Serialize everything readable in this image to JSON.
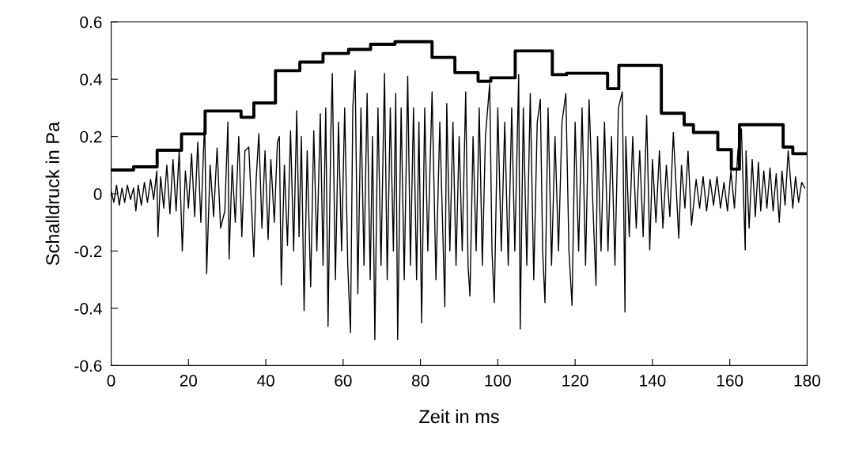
{
  "chart_data": {
    "type": "line",
    "xlabel": "Zeit in ms",
    "ylabel": "Schalldruck in Pa",
    "xlim": [
      0,
      180
    ],
    "ylim": [
      -0.6,
      0.6
    ],
    "xticks": [
      0,
      20,
      40,
      60,
      80,
      100,
      120,
      140,
      160,
      180
    ],
    "yticks": [
      -0.6,
      -0.4,
      -0.2,
      0,
      0.2,
      0.4,
      0.6
    ],
    "grid": false,
    "series": [
      {
        "color": "#000000",
        "x": [
          0,
          0.7,
          1.4,
          2.1,
          2.8,
          3.5,
          4.2,
          5,
          5.8,
          6.4,
          7,
          7.8,
          8.6,
          9.4,
          10.2,
          11,
          11.8,
          12.1,
          12.8,
          13.6,
          14.4,
          15.2,
          16,
          16.8,
          17.6,
          18.4,
          19.2,
          20,
          20.8,
          21.6,
          22.4,
          23.2,
          24.2,
          24.7,
          25.6,
          26.5,
          27.4,
          28.3,
          29.4,
          30.2,
          30.5,
          31.3,
          32.1,
          33,
          33.8,
          34.6,
          35.6,
          36.9,
          37.5,
          38.2,
          39,
          39.8,
          40.6,
          41.3,
          42.2,
          43,
          43.5,
          44,
          44.8,
          45.6,
          46.4,
          47.2,
          48,
          48.6,
          49.2,
          49.9,
          50.7,
          51.6,
          52.4,
          53.2,
          54.1,
          54.8,
          55.5,
          56.1,
          56.8,
          57.2,
          58,
          58.8,
          59.6,
          60.4,
          61.2,
          61.9,
          62.5,
          63.1,
          63.8,
          64.6,
          65.4,
          66.2,
          67,
          67.6,
          68.2,
          69,
          69.8,
          70.7,
          71.4,
          72.2,
          73,
          73.6,
          74.1,
          75,
          75.8,
          76.7,
          77.4,
          78.2,
          79,
          79.6,
          80.3,
          81.1,
          81.9,
          83,
          84,
          85,
          86.3,
          86.8,
          87.6,
          88.4,
          89.2,
          90,
          90.8,
          91.7,
          92.3,
          92.8,
          93.6,
          94.4,
          95.2,
          96,
          96.8,
          97.9,
          98.5,
          99.1,
          100,
          100.9,
          101.8,
          102.7,
          103.6,
          104.4,
          105.4,
          105.8,
          106.6,
          107.5,
          108.4,
          109.3,
          110.2,
          111,
          111.6,
          112.2,
          113,
          113.9,
          114.8,
          115.7,
          116.6,
          117.6,
          118.4,
          119.2,
          120,
          120.9,
          121.8,
          122.7,
          123.6,
          124.9,
          125.4,
          125.8,
          126.7,
          127.6,
          128.5,
          129.4,
          130.3,
          131.2,
          132.2,
          132.9,
          133.1,
          134,
          134.9,
          135.8,
          136.7,
          137.6,
          138.5,
          139.3,
          140,
          140.9,
          141.8,
          142.7,
          143.6,
          144.5,
          145.4,
          146.8,
          147.5,
          148.4,
          149.2,
          150.1,
          151.3,
          152.2,
          153.1,
          154,
          154.9,
          155.8,
          156.7,
          157.6,
          158.5,
          159.4,
          160.3,
          161.2,
          162.1,
          163,
          164,
          164.2,
          165,
          165.8,
          166.6,
          167.4,
          168,
          168.8,
          169.6,
          170.4,
          171.2,
          172,
          172.8,
          173.5,
          174.3,
          175.1,
          176.3,
          177,
          177.8,
          178.6,
          179.4
        ],
        "values": [
          0.01,
          -0.03,
          0.03,
          -0.04,
          0.02,
          -0.03,
          0.03,
          -0.02,
          0.02,
          -0.06,
          0.03,
          -0.04,
          0.04,
          -0.03,
          0.05,
          -0.02,
          0.08,
          -0.15,
          0.06,
          -0.05,
          0.1,
          -0.07,
          0.12,
          -0.06,
          0.15,
          -0.2,
          0.08,
          -0.05,
          0.14,
          -0.08,
          0.18,
          -0.1,
          0.26,
          -0.279,
          0.1,
          -0.08,
          0.16,
          -0.12,
          -0.06,
          0.25,
          -0.228,
          0.1,
          -0.1,
          0.2,
          -0.15,
          0.15,
          0.163,
          -0.22,
          0.05,
          0.21,
          -0.12,
          0.15,
          -0.16,
          0.12,
          -0.1,
          0.18,
          0.2,
          -0.319,
          0.1,
          -0.18,
          0.22,
          -0.2,
          0.29,
          -0.15,
          0.2,
          -0.408,
          0.15,
          -0.325,
          0.22,
          -0.2,
          0.28,
          -0.25,
          0.3,
          -0.463,
          0.2,
          0.42,
          -0.3,
          0.25,
          -0.2,
          0.3,
          -0.25,
          -0.484,
          0.3,
          0.43,
          -0.35,
          0.3,
          -0.25,
          0.35,
          -0.3,
          0.2,
          -0.509,
          0.3,
          -0.25,
          0.42,
          -0.3,
          0.3,
          -0.2,
          0.35,
          -0.509,
          0.3,
          -0.3,
          0.41,
          -0.25,
          0.3,
          -0.3,
          0.25,
          -0.451,
          0.3,
          -0.2,
          0.356,
          -0.3,
          0.25,
          -0.394,
          0.315,
          -0.2,
          0.25,
          -0.25,
          0.2,
          -0.2,
          0.356,
          -0.25,
          -0.357,
          0.2,
          -0.2,
          0.3,
          -0.25,
          0.2,
          0.384,
          -0.2,
          -0.38,
          0.3,
          -0.2,
          0.25,
          -0.25,
          0.3,
          -0.2,
          0.416,
          -0.472,
          0.3,
          -0.25,
          0.35,
          -0.3,
          0.25,
          0.33,
          -0.2,
          -0.38,
          0.3,
          -0.25,
          0.2,
          -0.2,
          0.25,
          0.35,
          -0.2,
          -0.39,
          0.25,
          -0.2,
          0.3,
          -0.25,
          0.329,
          -0.15,
          -0.32,
          0.2,
          -0.2,
          0.25,
          -0.2,
          0.2,
          -0.25,
          0.3,
          0.356,
          -0.413,
          0.2,
          -0.15,
          0.2,
          -0.12,
          0.15,
          -0.15,
          0.273,
          -0.196,
          0.12,
          -0.1,
          0.15,
          -0.12,
          0.1,
          -0.08,
          0.214,
          -0.155,
          0.1,
          -0.05,
          0.149,
          -0.11,
          0.05,
          -0.05,
          0.06,
          -0.06,
          0.05,
          -0.04,
          0.06,
          -0.05,
          0.04,
          -0.06,
          0.08,
          -0.05,
          0.15,
          0.227,
          -0.196,
          0.15,
          -0.12,
          0.12,
          -0.08,
          0.11,
          -0.06,
          0.08,
          -0.05,
          0.09,
          -0.06,
          0.07,
          -0.1,
          0.08,
          -0.04,
          0.15,
          -0.05,
          0.06,
          -0.03,
          0.04,
          0.02
        ]
      },
      {
        "type": "step",
        "color": "#000000",
        "x": [
          0,
          5.8,
          11.9,
          18.2,
          24.3,
          33.6,
          36.9,
          42.5,
          48.8,
          54.8,
          61.4,
          67.1,
          73.4,
          83.0,
          88.9,
          94.9,
          98.2,
          104.5,
          114.1,
          117.8,
          128.4,
          131.3,
          142.3,
          148.2,
          150.6,
          156.9,
          160.4,
          162.5,
          173.8,
          176.3,
          180
        ],
        "values": [
          0.083,
          0.094,
          0.152,
          0.209,
          0.289,
          0.267,
          0.317,
          0.43,
          0.46,
          0.49,
          0.504,
          0.522,
          0.531,
          0.476,
          0.423,
          0.393,
          0.405,
          0.499,
          0.416,
          0.421,
          0.367,
          0.448,
          0.281,
          0.241,
          0.214,
          0.154,
          0.086,
          0.241,
          0.163,
          0.14,
          0.14
        ]
      }
    ]
  }
}
